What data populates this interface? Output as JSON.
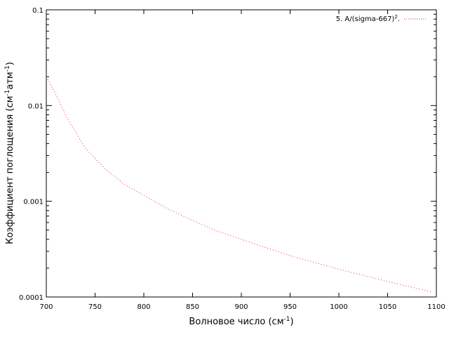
{
  "chart_data": {
    "type": "line",
    "xlabel": "Волновое число (см",
    "xlabel_sup": "-1",
    "xlabel_close": ")",
    "ylabel": "Коэффициент поглощения (см",
    "ylabel_sup1": "-1",
    "ylabel_mid": "атм",
    "ylabel_sup2": "-1",
    "ylabel_close": ")",
    "xlim": [
      700,
      1100
    ],
    "ylim": [
      0.0001,
      0.1
    ],
    "yscale": "log",
    "grid": false,
    "legend_position": "top-right",
    "x_ticks": [
      700,
      750,
      800,
      850,
      900,
      950,
      1000,
      1050,
      1100
    ],
    "x_tick_labels": [
      "700",
      "750",
      "800",
      "850",
      "900",
      "950",
      "1000",
      "1050",
      "1100"
    ],
    "y_ticks": [
      0.0001,
      0.001,
      0.01,
      0.1
    ],
    "y_tick_labels": [
      "0.0001",
      "0.001",
      "0.01",
      "0.1"
    ],
    "series": [
      {
        "name": "5. A/(sigma-667)",
        "name_sup": "2",
        "name_suffix": ".",
        "color": "#e03030",
        "style": "dotted",
        "x": [
          700,
          710,
          720,
          740,
          760,
          780,
          800,
          825,
          850,
          875,
          900,
          950,
          1000,
          1050,
          1095
        ],
        "y": [
          0.02,
          0.013,
          0.0078,
          0.0036,
          0.0022,
          0.0015,
          0.00115,
          0.00083,
          0.00063,
          0.00049,
          0.0004,
          0.00027,
          0.000195,
          0.000145,
          0.000113
        ]
      }
    ]
  }
}
